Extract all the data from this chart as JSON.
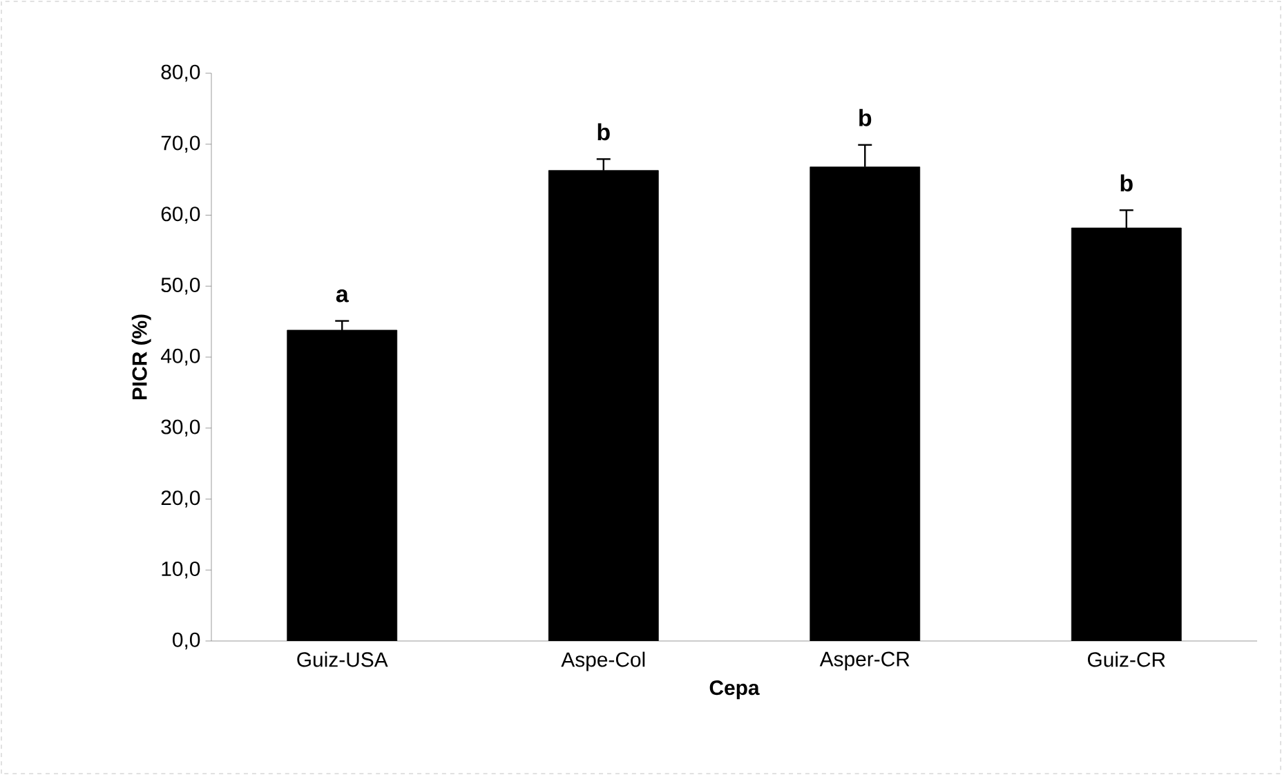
{
  "chart_data": {
    "type": "bar",
    "xlabel": "Cepa",
    "ylabel": "PICR (%)",
    "categories": [
      "Guiz-USA",
      "Aspe-Col",
      "Asper-CR",
      "Guiz-CR"
    ],
    "values": [
      43.8,
      66.3,
      66.8,
      58.2
    ],
    "errors": [
      1.3,
      1.6,
      3.1,
      2.5
    ],
    "color": "#000000",
    "ylim": [
      0,
      80
    ],
    "yticks": [
      {
        "value": 0,
        "label": "0,0"
      },
      {
        "value": 10,
        "label": "10,0"
      },
      {
        "value": 20,
        "label": "20,0"
      },
      {
        "value": 30,
        "label": "30,0"
      },
      {
        "value": 40,
        "label": "40,0"
      },
      {
        "value": 50,
        "label": "50,0"
      },
      {
        "value": 60,
        "label": "60,0"
      },
      {
        "value": 70,
        "label": "70,0"
      },
      {
        "value": 80,
        "label": "80,0"
      }
    ],
    "annotations": [
      "a",
      "b",
      "b",
      "b"
    ]
  }
}
